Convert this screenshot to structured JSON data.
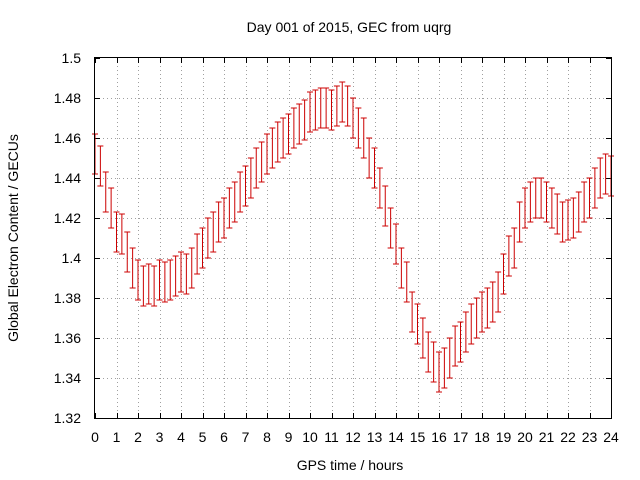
{
  "chart_data": {
    "type": "scatter",
    "title": "Day 001 of 2015, GEC from uqrg",
    "xlabel": "GPS time / hours",
    "ylabel": "Global Electron Content / GECUs",
    "xlim": [
      0,
      24
    ],
    "ylim": [
      1.32,
      1.5
    ],
    "x_ticks": [
      0,
      1,
      2,
      3,
      4,
      5,
      6,
      7,
      8,
      9,
      10,
      11,
      12,
      13,
      14,
      15,
      16,
      17,
      18,
      19,
      20,
      21,
      22,
      23,
      24
    ],
    "y_ticks": [
      1.32,
      1.34,
      1.36,
      1.38,
      1.4,
      1.42,
      1.44,
      1.46,
      1.48,
      1.5
    ],
    "y_tick_labels": [
      "1.32",
      "1.34",
      "1.36",
      "1.38",
      "1.4",
      "1.42",
      "1.44",
      "1.46",
      "1.48",
      "1.5"
    ],
    "grid": true,
    "error_bar_half_width": 0.01,
    "series": [
      {
        "color": "#cc0000",
        "x": [
          0,
          0.25,
          0.5,
          0.75,
          1,
          1.25,
          1.5,
          1.75,
          2,
          2.25,
          2.5,
          2.75,
          3,
          3.25,
          3.5,
          3.75,
          4,
          4.25,
          4.5,
          4.75,
          5,
          5.25,
          5.5,
          5.75,
          6,
          6.25,
          6.5,
          6.75,
          7,
          7.25,
          7.5,
          7.75,
          8,
          8.25,
          8.5,
          8.75,
          9,
          9.25,
          9.5,
          9.75,
          10,
          10.25,
          10.5,
          10.75,
          11,
          11.25,
          11.5,
          11.75,
          12,
          12.25,
          12.5,
          12.75,
          13,
          13.25,
          13.5,
          13.75,
          14,
          14.25,
          14.5,
          14.75,
          15,
          15.25,
          15.5,
          15.75,
          16,
          16.25,
          16.5,
          16.75,
          17,
          17.25,
          17.5,
          17.75,
          18,
          18.25,
          18.5,
          18.75,
          19,
          19.25,
          19.5,
          19.75,
          20,
          20.25,
          20.5,
          20.75,
          21,
          21.25,
          21.5,
          21.75,
          22,
          22.25,
          22.5,
          22.75,
          23,
          23.25,
          23.5,
          23.75,
          24
        ],
        "y": [
          1.452,
          1.446,
          1.433,
          1.425,
          1.413,
          1.412,
          1.403,
          1.395,
          1.389,
          1.386,
          1.387,
          1.386,
          1.389,
          1.388,
          1.389,
          1.391,
          1.393,
          1.392,
          1.395,
          1.402,
          1.405,
          1.41,
          1.413,
          1.418,
          1.42,
          1.425,
          1.428,
          1.433,
          1.436,
          1.44,
          1.445,
          1.448,
          1.452,
          1.455,
          1.458,
          1.46,
          1.462,
          1.465,
          1.467,
          1.469,
          1.473,
          1.474,
          1.475,
          1.475,
          1.474,
          1.476,
          1.478,
          1.476,
          1.47,
          1.465,
          1.46,
          1.45,
          1.445,
          1.435,
          1.426,
          1.415,
          1.407,
          1.395,
          1.388,
          1.373,
          1.367,
          1.36,
          1.353,
          1.348,
          1.343,
          1.345,
          1.35,
          1.356,
          1.358,
          1.363,
          1.367,
          1.37,
          1.373,
          1.375,
          1.378,
          1.383,
          1.392,
          1.401,
          1.405,
          1.418,
          1.425,
          1.428,
          1.43,
          1.43,
          1.428,
          1.425,
          1.422,
          1.418,
          1.419,
          1.42,
          1.423,
          1.428,
          1.43,
          1.435,
          1.44,
          1.442,
          1.441
        ]
      }
    ]
  }
}
